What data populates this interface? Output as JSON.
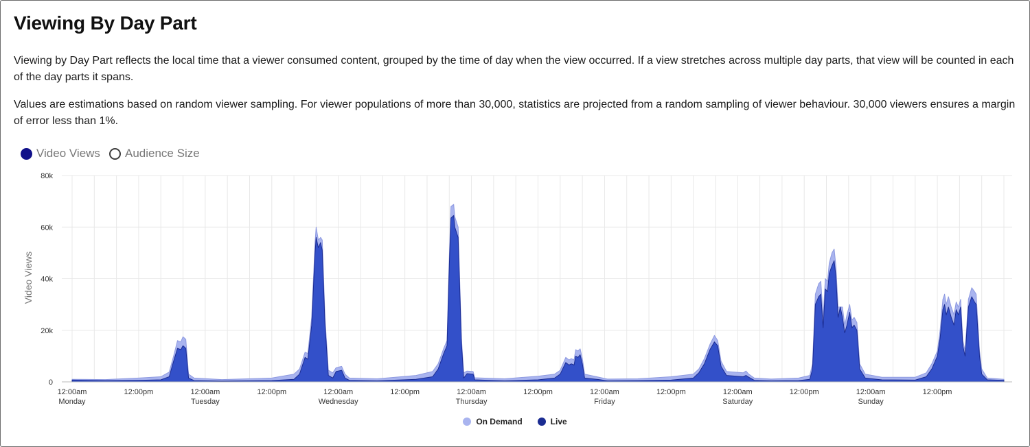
{
  "page": {
    "title": "Viewing By Day Part",
    "paragraph1": "Viewing by Day Part reflects the local time that a viewer consumed content, grouped by the time of day when the view occurred. If a view stretches across multiple day parts, that view will be counted in each of the day parts it spans.",
    "paragraph2": "Values are estimations based on random viewer sampling. For viewer populations of more than 30,000, statistics are projected from a random sampling of viewer behaviour. 30,000 viewers ensures a margin of error less than 1%."
  },
  "toggles": [
    {
      "label": "Video Views",
      "selected": true
    },
    {
      "label": "Audience Size",
      "selected": false
    }
  ],
  "colors": {
    "on_demand": "#a9b4ef",
    "live": "#3350c9",
    "live_line": "#1b2c92",
    "on_demand_line": "#8d99e0",
    "grid": "#e8e8e8",
    "selected_radio": "#11118a"
  },
  "chart_data": {
    "type": "area",
    "stacked": true,
    "ylabel": "Video Views",
    "ylim": [
      0,
      80000
    ],
    "y_ticks": [
      {
        "value": 0,
        "label": "0"
      },
      {
        "value": 20000,
        "label": "20k"
      },
      {
        "value": 40000,
        "label": "40k"
      },
      {
        "value": 60000,
        "label": "60k"
      },
      {
        "value": 80000,
        "label": "80k"
      }
    ],
    "xlim": [
      0,
      168
    ],
    "x_unit": "hours since 12:00am Monday",
    "x_ticks": [
      {
        "hour": 0,
        "label": "12:00am",
        "sublabel": "Monday"
      },
      {
        "hour": 12,
        "label": "12:00pm",
        "sublabel": ""
      },
      {
        "hour": 24,
        "label": "12:00am",
        "sublabel": "Tuesday"
      },
      {
        "hour": 36,
        "label": "12:00pm",
        "sublabel": ""
      },
      {
        "hour": 48,
        "label": "12:00am",
        "sublabel": "Wednesday"
      },
      {
        "hour": 60,
        "label": "12:00pm",
        "sublabel": ""
      },
      {
        "hour": 72,
        "label": "12:00am",
        "sublabel": "Thursday"
      },
      {
        "hour": 84,
        "label": "12:00pm",
        "sublabel": ""
      },
      {
        "hour": 96,
        "label": "12:00am",
        "sublabel": "Friday"
      },
      {
        "hour": 108,
        "label": "12:00pm",
        "sublabel": ""
      },
      {
        "hour": 120,
        "label": "12:00am",
        "sublabel": "Saturday"
      },
      {
        "hour": 132,
        "label": "12:00pm",
        "sublabel": ""
      },
      {
        "hour": 144,
        "label": "12:00am",
        "sublabel": "Sunday"
      },
      {
        "hour": 156,
        "label": "12:00pm",
        "sublabel": ""
      }
    ],
    "grid": true,
    "legend_position": "bottom-center",
    "series": [
      {
        "name": "Live",
        "points": [
          [
            0,
            700
          ],
          [
            6,
            500
          ],
          [
            12,
            600
          ],
          [
            16,
            800
          ],
          [
            17.5,
            2000
          ],
          [
            18.3,
            8000
          ],
          [
            19,
            13000
          ],
          [
            19.6,
            12500
          ],
          [
            20,
            14000
          ],
          [
            20.5,
            13000
          ],
          [
            21,
            1500
          ],
          [
            22,
            500
          ],
          [
            27,
            300
          ],
          [
            36,
            500
          ],
          [
            40,
            1000
          ],
          [
            41,
            3000
          ],
          [
            42,
            9500
          ],
          [
            42.5,
            8800
          ],
          [
            43.2,
            22000
          ],
          [
            43.8,
            50000
          ],
          [
            44,
            56000
          ],
          [
            44.4,
            52000
          ],
          [
            44.8,
            54000
          ],
          [
            45.1,
            51000
          ],
          [
            45.6,
            22000
          ],
          [
            46.2,
            2500
          ],
          [
            47,
            1500
          ],
          [
            47.6,
            4000
          ],
          [
            48.6,
            4500
          ],
          [
            49.2,
            1500
          ],
          [
            50,
            600
          ],
          [
            55,
            400
          ],
          [
            62,
            1000
          ],
          [
            65,
            2000
          ],
          [
            66,
            5000
          ],
          [
            67,
            11000
          ],
          [
            67.3,
            12500
          ],
          [
            67.6,
            14000
          ],
          [
            68,
            45000
          ],
          [
            68.3,
            63500
          ],
          [
            68.8,
            64500
          ],
          [
            69,
            60000
          ],
          [
            69.6,
            56000
          ],
          [
            70.2,
            15000
          ],
          [
            70.6,
            1500
          ],
          [
            71.2,
            3200
          ],
          [
            72.3,
            3000
          ],
          [
            72.6,
            800
          ],
          [
            78,
            400
          ],
          [
            84,
            800
          ],
          [
            87,
            1500
          ],
          [
            88,
            3000
          ],
          [
            89,
            7500
          ],
          [
            89.6,
            6500
          ],
          [
            90,
            7000
          ],
          [
            90.5,
            6500
          ],
          [
            90.8,
            10000
          ],
          [
            91.2,
            9500
          ],
          [
            91.6,
            10500
          ],
          [
            92,
            7000
          ],
          [
            92.4,
            1500
          ],
          [
            95,
            900
          ],
          [
            96.5,
            400
          ],
          [
            102,
            500
          ],
          [
            108,
            700
          ],
          [
            112,
            1500
          ],
          [
            113,
            3500
          ],
          [
            114,
            7000
          ],
          [
            115,
            12500
          ],
          [
            115.8,
            15500
          ],
          [
            116.4,
            14000
          ],
          [
            117,
            6000
          ],
          [
            118,
            2500
          ],
          [
            121,
            2000
          ],
          [
            121.5,
            2500
          ],
          [
            122,
            1800
          ],
          [
            123,
            600
          ],
          [
            126,
            400
          ],
          [
            131,
            500
          ],
          [
            133,
            1000
          ],
          [
            133.5,
            5000
          ],
          [
            134,
            30000
          ],
          [
            134.6,
            33000
          ],
          [
            135,
            34000
          ],
          [
            135.4,
            21000
          ],
          [
            135.8,
            36000
          ],
          [
            136.2,
            35000
          ],
          [
            136.5,
            42000
          ],
          [
            137,
            45000
          ],
          [
            137.4,
            47000
          ],
          [
            137.7,
            41000
          ],
          [
            138.1,
            25000
          ],
          [
            138.5,
            29000
          ],
          [
            138.9,
            25000
          ],
          [
            139.3,
            19000
          ],
          [
            139.7,
            22000
          ],
          [
            140.2,
            27000
          ],
          [
            140.6,
            21000
          ],
          [
            141,
            22000
          ],
          [
            141.5,
            20000
          ],
          [
            142,
            5000
          ],
          [
            143,
            1500
          ],
          [
            146,
            800
          ],
          [
            152,
            700
          ],
          [
            154,
            2000
          ],
          [
            155,
            5000
          ],
          [
            156,
            10000
          ],
          [
            156.5,
            17000
          ],
          [
            157,
            28000
          ],
          [
            157.3,
            30000
          ],
          [
            157.6,
            26000
          ],
          [
            158,
            29000
          ],
          [
            158.5,
            25000
          ],
          [
            159,
            22000
          ],
          [
            159.4,
            28000
          ],
          [
            159.8,
            26000
          ],
          [
            160.2,
            29000
          ],
          [
            160.6,
            14000
          ],
          [
            161,
            10000
          ],
          [
            161.6,
            29000
          ],
          [
            162.2,
            33000
          ],
          [
            162.7,
            31000
          ],
          [
            163,
            30000
          ],
          [
            163.6,
            10000
          ],
          [
            164,
            3000
          ],
          [
            165,
            800
          ],
          [
            168,
            600
          ]
        ]
      },
      {
        "name": "On Demand",
        "points": [
          [
            0,
            1000
          ],
          [
            6,
            900
          ],
          [
            12,
            1500
          ],
          [
            16,
            2000
          ],
          [
            17.5,
            3800
          ],
          [
            18.3,
            10000
          ],
          [
            19,
            16000
          ],
          [
            19.6,
            15500
          ],
          [
            20,
            17500
          ],
          [
            20.5,
            16500
          ],
          [
            21,
            3000
          ],
          [
            22,
            1500
          ],
          [
            27,
            900
          ],
          [
            36,
            1500
          ],
          [
            40,
            3000
          ],
          [
            41,
            5000
          ],
          [
            42,
            11500
          ],
          [
            42.5,
            11000
          ],
          [
            43.2,
            25000
          ],
          [
            43.8,
            54000
          ],
          [
            44,
            60000
          ],
          [
            44.4,
            55000
          ],
          [
            44.8,
            56000
          ],
          [
            45.1,
            55000
          ],
          [
            45.6,
            25000
          ],
          [
            46.2,
            4500
          ],
          [
            47,
            3500
          ],
          [
            47.6,
            5500
          ],
          [
            48.6,
            6000
          ],
          [
            49.2,
            3000
          ],
          [
            50,
            1500
          ],
          [
            55,
            1200
          ],
          [
            62,
            2500
          ],
          [
            65,
            4000
          ],
          [
            66,
            7000
          ],
          [
            67,
            13000
          ],
          [
            67.3,
            14500
          ],
          [
            67.6,
            16000
          ],
          [
            68,
            48000
          ],
          [
            68.3,
            68000
          ],
          [
            68.8,
            68800
          ],
          [
            69,
            64000
          ],
          [
            69.6,
            60000
          ],
          [
            70.2,
            17000
          ],
          [
            70.6,
            3500
          ],
          [
            71.2,
            4200
          ],
          [
            72.3,
            4000
          ],
          [
            72.6,
            1600
          ],
          [
            78,
            1200
          ],
          [
            84,
            2200
          ],
          [
            87,
            3000
          ],
          [
            88,
            4500
          ],
          [
            89,
            9500
          ],
          [
            89.6,
            8500
          ],
          [
            90,
            9000
          ],
          [
            90.5,
            8500
          ],
          [
            90.8,
            12500
          ],
          [
            91.2,
            12000
          ],
          [
            91.6,
            12800
          ],
          [
            92,
            9000
          ],
          [
            92.4,
            3000
          ],
          [
            95,
            1800
          ],
          [
            96.5,
            1100
          ],
          [
            102,
            1200
          ],
          [
            108,
            2000
          ],
          [
            112,
            3000
          ],
          [
            113,
            5000
          ],
          [
            114,
            9000
          ],
          [
            115,
            14500
          ],
          [
            115.8,
            18000
          ],
          [
            116.4,
            16000
          ],
          [
            117,
            8000
          ],
          [
            118,
            4000
          ],
          [
            121,
            3500
          ],
          [
            121.5,
            4200
          ],
          [
            122,
            3000
          ],
          [
            123,
            1500
          ],
          [
            126,
            1100
          ],
          [
            131,
            1500
          ],
          [
            133,
            2500
          ],
          [
            133.5,
            7000
          ],
          [
            134,
            34000
          ],
          [
            134.6,
            38000
          ],
          [
            135,
            39000
          ],
          [
            135.4,
            25000
          ],
          [
            135.8,
            40000
          ],
          [
            136.2,
            39000
          ],
          [
            136.5,
            46000
          ],
          [
            137,
            50000
          ],
          [
            137.4,
            51500
          ],
          [
            137.7,
            45000
          ],
          [
            138.1,
            29000
          ],
          [
            138.9,
            29000
          ],
          [
            139.3,
            22000
          ],
          [
            139.7,
            26000
          ],
          [
            140.2,
            30000
          ],
          [
            140.6,
            24000
          ],
          [
            141,
            25000
          ],
          [
            141.5,
            23000
          ],
          [
            142,
            7000
          ],
          [
            143,
            3000
          ],
          [
            146,
            1800
          ],
          [
            152,
            1800
          ],
          [
            154,
            3500
          ],
          [
            155,
            7000
          ],
          [
            156,
            12000
          ],
          [
            156.5,
            20000
          ],
          [
            157,
            32000
          ],
          [
            157.3,
            34000
          ],
          [
            157.6,
            30000
          ],
          [
            158,
            33000
          ],
          [
            158.5,
            29000
          ],
          [
            159,
            26000
          ],
          [
            159.4,
            31000
          ],
          [
            159.8,
            29000
          ],
          [
            160.2,
            32000
          ],
          [
            160.6,
            16000
          ],
          [
            161,
            12000
          ],
          [
            161.6,
            32000
          ],
          [
            162.2,
            36500
          ],
          [
            162.7,
            35000
          ],
          [
            163,
            34000
          ],
          [
            163.6,
            12000
          ],
          [
            164,
            5000
          ],
          [
            165,
            1500
          ],
          [
            168,
            1000
          ]
        ]
      }
    ]
  }
}
